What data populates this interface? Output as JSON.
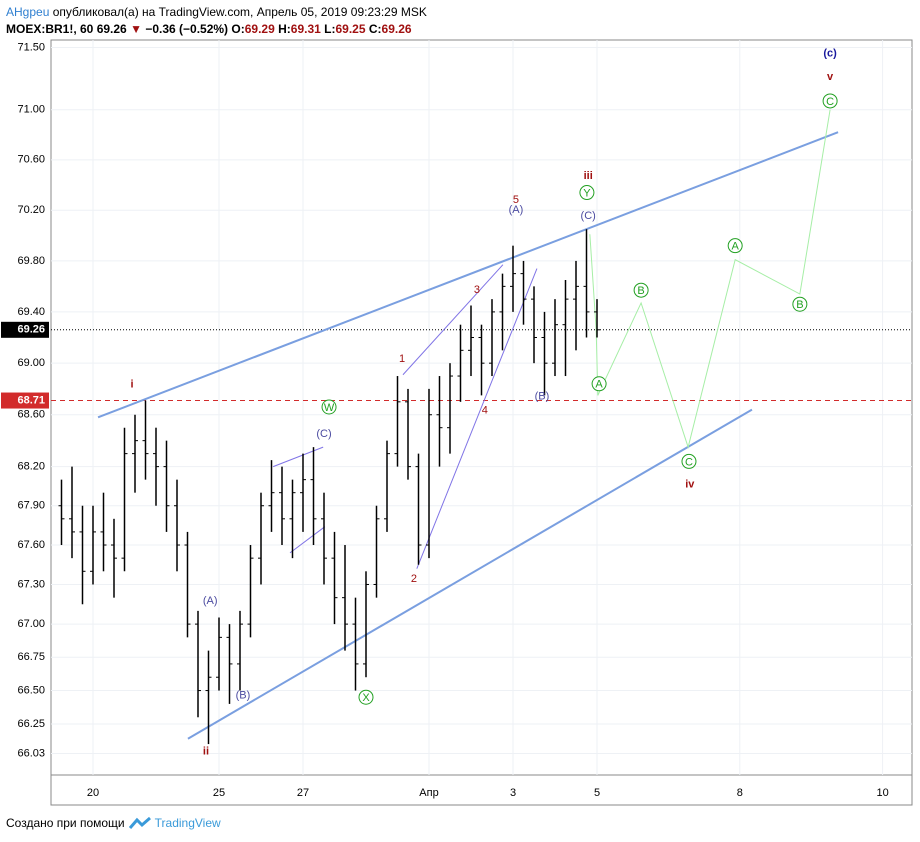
{
  "header": {
    "author": "AHgpeu",
    "published": "опубликовал(а) на TradingView.com, Апрель 05, 2019 09:23:29 MSK",
    "symbol": "MOEX:BR1!, 60",
    "last": 69.26,
    "arrow": "▼",
    "change": "−0.36 (−0.52%)",
    "o_label": "O:",
    "open": 69.29,
    "h_label": "H:",
    "high": 69.31,
    "l_label": "L:",
    "low": 69.25,
    "c_label": "C:",
    "close": 69.26
  },
  "chart_data": {
    "type": "ohlc",
    "log": true,
    "grid": true,
    "bar_color": "#000000",
    "ylim": [
      65.87,
      71.56
    ],
    "xlim": [
      0,
      20.5
    ],
    "yticks": [
      {
        "value": 71.5,
        "label": "71.50"
      },
      {
        "value": 71,
        "label": "71.00"
      },
      {
        "value": 70.6,
        "label": "70.60"
      },
      {
        "value": 70.2,
        "label": "70.20"
      },
      {
        "value": 69.8,
        "label": "69.80"
      },
      {
        "value": 69.4,
        "label": "69.40"
      },
      {
        "value": 69,
        "label": "69.00"
      },
      {
        "value": 68.6,
        "label": "68.60"
      },
      {
        "value": 68.2,
        "label": "68.20"
      },
      {
        "value": 67.9,
        "label": "67.90"
      },
      {
        "value": 67.6,
        "label": "67.60"
      },
      {
        "value": 67.3,
        "label": "67.30"
      },
      {
        "value": 67,
        "label": "67.00"
      },
      {
        "value": 66.75,
        "label": "66.75"
      },
      {
        "value": 66.5,
        "label": "66.50"
      },
      {
        "value": 66.25,
        "label": "66.25"
      },
      {
        "value": 66.03,
        "label": "66.03"
      }
    ],
    "xticks": [
      {
        "value": 1,
        "label": "20"
      },
      {
        "value": 4,
        "label": "25"
      },
      {
        "value": 6,
        "label": "27"
      },
      {
        "value": 9,
        "label": "Апр"
      },
      {
        "value": 11,
        "label": "3"
      },
      {
        "value": 13,
        "label": "5"
      },
      {
        "value": 16.4,
        "label": "8"
      },
      {
        "value": 19.8,
        "label": "10"
      }
    ],
    "x": [
      0.25,
      0.5,
      0.75,
      1,
      1.25,
      1.5,
      1.75,
      2,
      2.25,
      2.5,
      2.75,
      3,
      3.25,
      3.5,
      3.75,
      4,
      4.25,
      4.5,
      4.75,
      5,
      5.25,
      5.5,
      5.75,
      6,
      6.25,
      6.5,
      6.75,
      7,
      7.25,
      7.5,
      7.75,
      8,
      8.25,
      8.5,
      8.75,
      9,
      9.25,
      9.5,
      9.75,
      10,
      10.25,
      10.5,
      10.75,
      11,
      11.25,
      11.5,
      11.75,
      12,
      12.25,
      12.5,
      12.75,
      13
    ],
    "open": [
      67.9,
      67.8,
      67.7,
      67.4,
      67.7,
      67.6,
      67.5,
      68.3,
      68.4,
      68.3,
      68.2,
      67.9,
      67.6,
      67.0,
      66.5,
      66.6,
      66.9,
      66.7,
      67.0,
      67.5,
      67.9,
      68.0,
      67.8,
      68.0,
      68.1,
      67.8,
      67.5,
      67.2,
      67.0,
      66.7,
      67.3,
      67.8,
      68.3,
      68.7,
      68.2,
      67.6,
      68.6,
      68.5,
      68.9,
      69.1,
      69.2,
      69.0,
      69.4,
      69.6,
      69.7,
      69.5,
      69.2,
      69.0,
      69.3,
      69.5,
      69.6,
      69.4
    ],
    "high": [
      68.1,
      68.2,
      67.9,
      67.9,
      68.0,
      67.8,
      68.5,
      68.6,
      68.71,
      68.5,
      68.4,
      68.1,
      67.7,
      67.1,
      66.8,
      67.05,
      67.0,
      67.1,
      67.6,
      68.0,
      68.25,
      68.2,
      68.1,
      68.3,
      68.35,
      68.0,
      67.7,
      67.6,
      67.2,
      67.4,
      67.9,
      68.4,
      68.9,
      68.8,
      68.3,
      68.8,
      68.9,
      69.0,
      69.3,
      69.45,
      69.3,
      69.5,
      69.7,
      69.92,
      69.8,
      69.6,
      69.4,
      69.5,
      69.65,
      69.8,
      70.05,
      69.5
    ],
    "low": [
      67.6,
      67.5,
      67.15,
      67.3,
      67.4,
      67.2,
      67.4,
      68.0,
      68.1,
      67.9,
      67.7,
      67.4,
      66.9,
      66.3,
      66.1,
      66.5,
      66.4,
      66.5,
      66.9,
      67.3,
      67.7,
      67.6,
      67.5,
      67.7,
      67.6,
      67.3,
      67.0,
      66.8,
      66.5,
      66.6,
      67.2,
      67.7,
      68.2,
      68.1,
      67.45,
      67.5,
      68.2,
      68.3,
      68.7,
      68.9,
      68.75,
      68.9,
      69.1,
      69.4,
      69.3,
      69.0,
      68.75,
      68.9,
      68.9,
      69.1,
      69.2,
      69.2
    ],
    "close": [
      67.8,
      67.7,
      67.4,
      67.7,
      67.6,
      67.5,
      68.3,
      68.4,
      68.3,
      68.2,
      67.9,
      67.6,
      67.0,
      66.5,
      66.6,
      66.9,
      66.7,
      67.0,
      67.5,
      67.9,
      68.0,
      67.8,
      68.0,
      68.1,
      67.8,
      67.5,
      67.2,
      67.0,
      66.7,
      67.3,
      67.8,
      68.3,
      68.7,
      68.2,
      67.6,
      68.6,
      68.5,
      68.9,
      69.1,
      69.2,
      69.0,
      69.4,
      69.6,
      69.7,
      69.5,
      69.2,
      69.0,
      69.3,
      69.5,
      69.6,
      69.4,
      69.26
    ],
    "price_lines": [
      {
        "value": 69.26,
        "color": "#000000",
        "dash": "dotted"
      },
      {
        "value": 68.71,
        "color": "#d22b2b",
        "dash": "dashed"
      }
    ],
    "lines": [
      {
        "color": "#7a9fe0",
        "width": 2,
        "x": [
          1.12,
          18.74
        ],
        "y": [
          68.58,
          70.82
        ]
      },
      {
        "color": "#7a9fe0",
        "width": 2,
        "x": [
          3.26,
          16.69
        ],
        "y": [
          66.14,
          68.64
        ]
      },
      {
        "color": "#8074e6",
        "width": 1,
        "x": [
          5.29,
          6.48
        ],
        "y": [
          68.2,
          68.35
        ]
      },
      {
        "color": "#8074e6",
        "width": 1,
        "x": [
          5.69,
          6.52
        ],
        "y": [
          67.54,
          67.74
        ]
      },
      {
        "color": "#8074e6",
        "width": 1,
        "x": [
          8.38,
          10.76
        ],
        "y": [
          68.91,
          69.77
        ]
      },
      {
        "color": "#8074e6",
        "width": 1,
        "x": [
          8.71,
          11.57
        ],
        "y": [
          67.42,
          69.74
        ]
      },
      {
        "color": "#a6eea6",
        "width": 1,
        "x": [
          12.83,
          12.98,
          13.02,
          14.05,
          15.17,
          16.29,
          17.83,
          18.55
        ],
        "y": [
          70.01,
          69.26,
          68.75,
          69.47,
          68.35,
          69.81,
          69.54,
          71.0
        ]
      }
    ],
    "annotations": [
      {
        "text": "i",
        "x": 1.93,
        "y": 68.84,
        "color": "#a01010",
        "bold": true
      },
      {
        "text": "ii",
        "x": 3.69,
        "y": 66.05,
        "color": "#a01010",
        "bold": true
      },
      {
        "text": "iii",
        "x": 12.79,
        "y": 70.48,
        "color": "#a01010",
        "bold": true
      },
      {
        "text": "iv",
        "x": 15.21,
        "y": 68.07,
        "color": "#a01010",
        "bold": true
      },
      {
        "text": "v",
        "x": 18.55,
        "y": 71.27,
        "color": "#a01010",
        "bold": true
      },
      {
        "text": "(c)",
        "x": 18.55,
        "y": 71.46,
        "color": "#1a1a9e",
        "bold": true
      },
      {
        "text": "W",
        "x": 6.62,
        "y": 68.66,
        "color": "#22a022",
        "circle": true
      },
      {
        "text": "X",
        "x": 7.5,
        "y": 66.45,
        "color": "#22a022",
        "circle": true
      },
      {
        "text": "Y",
        "x": 12.76,
        "y": 70.34,
        "color": "#22a022",
        "circle": true
      },
      {
        "text": "A",
        "x": 13.05,
        "y": 68.84,
        "color": "#22a022",
        "circle": true
      },
      {
        "text": "B",
        "x": 14.05,
        "y": 69.57,
        "color": "#22a022",
        "circle": true
      },
      {
        "text": "C",
        "x": 15.19,
        "y": 68.24,
        "color": "#22a022",
        "circle": true
      },
      {
        "text": "A",
        "x": 16.29,
        "y": 69.92,
        "color": "#22a022",
        "circle": true
      },
      {
        "text": "B",
        "x": 17.83,
        "y": 69.46,
        "color": "#22a022",
        "circle": true
      },
      {
        "text": "C",
        "x": 18.55,
        "y": 71.07,
        "color": "#22a022",
        "circle": true
      },
      {
        "text": "(A)",
        "x": 3.79,
        "y": 67.18,
        "color": "#4a4aa0"
      },
      {
        "text": "(B)",
        "x": 4.57,
        "y": 66.47,
        "color": "#4a4aa0"
      },
      {
        "text": "(C)",
        "x": 6.5,
        "y": 68.46,
        "color": "#4a4aa0"
      },
      {
        "text": "(A)",
        "x": 11.07,
        "y": 70.21,
        "color": "#4a4aa0"
      },
      {
        "text": "(B)",
        "x": 11.69,
        "y": 68.75,
        "color": "#4a4aa0"
      },
      {
        "text": "(C)",
        "x": 12.79,
        "y": 70.16,
        "color": "#4a4aa0"
      },
      {
        "text": "1",
        "x": 8.36,
        "y": 69.04,
        "color": "#a01010"
      },
      {
        "text": "2",
        "x": 8.64,
        "y": 67.35,
        "color": "#a01010"
      },
      {
        "text": "3",
        "x": 10.14,
        "y": 69.58,
        "color": "#a01010"
      },
      {
        "text": "4",
        "x": 10.33,
        "y": 68.64,
        "color": "#a01010"
      },
      {
        "text": "5",
        "x": 11.07,
        "y": 70.29,
        "color": "#a01010"
      }
    ]
  },
  "footer": {
    "made_with": "Создано при помощи",
    "brand": "TradingView"
  }
}
